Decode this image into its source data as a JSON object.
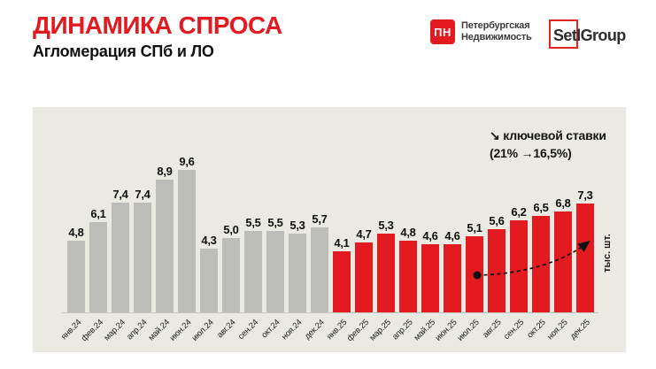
{
  "header": {
    "title": "ДИНАМИКА СПРОСА",
    "subtitle": "Агломерация СПб и ЛО"
  },
  "logos": {
    "pn": {
      "monogram": "ПН",
      "line1": "Петербургская",
      "line2": "Недвижимость"
    },
    "setl": {
      "text": "SetlGroup"
    }
  },
  "chart_data": {
    "type": "bar",
    "title": "ДИНАМИКА СПРОСА — Агломерация СПб и ЛО",
    "xlabel": "",
    "ylabel": "тыс. шт.",
    "ylim": [
      0,
      10
    ],
    "grid": false,
    "legend": "none",
    "annotation": {
      "line1": "↘ ключевой ставки",
      "line2": "(21% →16,5%)"
    },
    "categories": [
      "янв.24",
      "фев.24",
      "мар.24",
      "апр.24",
      "май.24",
      "июн.24",
      "июл.24",
      "авг.24",
      "сен.24",
      "окт.24",
      "ноя.24",
      "дек.24",
      "янв.25",
      "фев.25",
      "мар.25",
      "апр.25",
      "май.25",
      "июн.25",
      "июл.25",
      "авг.25",
      "сен.25",
      "окт.25",
      "ноя.25",
      "дек.25"
    ],
    "values": [
      4.8,
      6.1,
      7.4,
      7.4,
      8.9,
      9.6,
      4.3,
      5.0,
      5.5,
      5.5,
      5.3,
      5.7,
      4.1,
      4.7,
      5.3,
      4.8,
      4.6,
      4.6,
      5.1,
      5.6,
      6.2,
      6.5,
      6.8,
      7.3
    ],
    "value_labels": [
      "4,8",
      "6,1",
      "7,4",
      "7,4",
      "8,9",
      "9,6",
      "4,3",
      "5,0",
      "5,5",
      "5,5",
      "5,3",
      "5,7",
      "4,1",
      "4,7",
      "5,3",
      "4,8",
      "4,6",
      "4,6",
      "5,1",
      "5,6",
      "6,2",
      "6,5",
      "6,8",
      "7,3"
    ],
    "series_color_keys": [
      "gray",
      "gray",
      "gray",
      "gray",
      "gray",
      "gray",
      "gray",
      "gray",
      "gray",
      "gray",
      "gray",
      "gray",
      "red",
      "red",
      "red",
      "red",
      "red",
      "red",
      "red",
      "red",
      "red",
      "red",
      "red",
      "red"
    ],
    "colors": {
      "red": "#e31a20",
      "gray": "#bcbcb8",
      "panel": "#eaeae2"
    }
  }
}
